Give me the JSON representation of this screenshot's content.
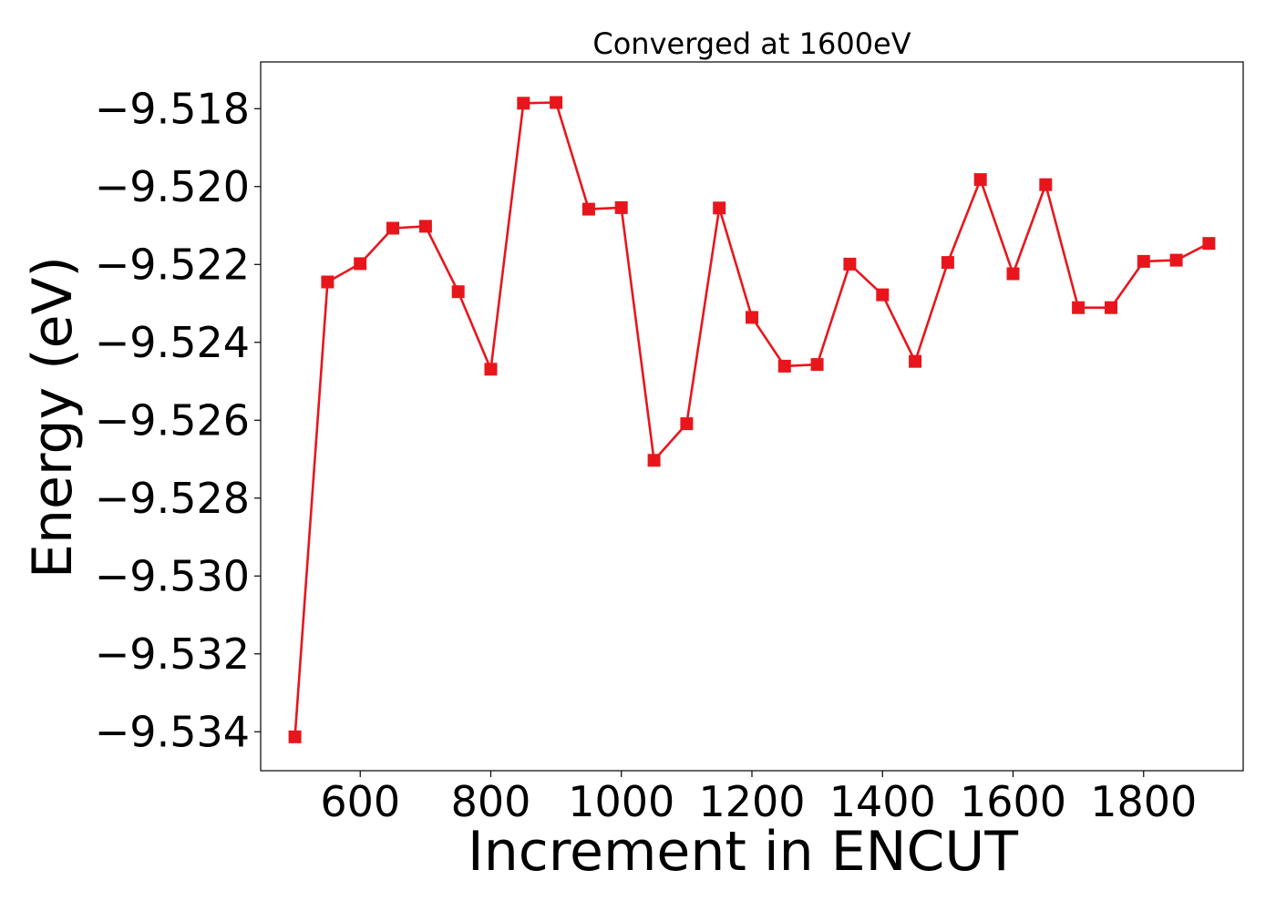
{
  "chart_data": {
    "type": "line",
    "title": "Converged at 1600eV",
    "xlabel": "Increment in ENCUT",
    "ylabel": "Energy (eV)",
    "xlim": [
      447.5,
      1952.5
    ],
    "ylim": [
      -9.535,
      -9.5168
    ],
    "xticks": [
      600,
      800,
      1000,
      1200,
      1400,
      1600,
      1800
    ],
    "xtick_labels": [
      "600",
      "800",
      "1000",
      "1200",
      "1400",
      "1600",
      "1800"
    ],
    "yticks": [
      -9.518,
      -9.52,
      -9.522,
      -9.524,
      -9.526,
      -9.528,
      -9.53,
      -9.532,
      -9.534
    ],
    "ytick_labels": [
      "−9.518",
      "−9.520",
      "−9.522",
      "−9.524",
      "−9.526",
      "−9.528",
      "−9.530",
      "−9.532",
      "−9.534"
    ],
    "grid": false,
    "marker": "square",
    "color": "#e8161c",
    "x": [
      500,
      550,
      600,
      650,
      700,
      750,
      800,
      850,
      900,
      950,
      1000,
      1050,
      1100,
      1150,
      1200,
      1250,
      1300,
      1350,
      1400,
      1450,
      1500,
      1550,
      1600,
      1650,
      1700,
      1750,
      1800,
      1850,
      1900
    ],
    "y": [
      -9.53413,
      -9.52245,
      -9.52198,
      -9.52107,
      -9.52102,
      -9.5227,
      -9.52469,
      -9.51786,
      -9.51784,
      -9.52058,
      -9.52054,
      -9.52703,
      -9.52609,
      -9.52055,
      -9.52336,
      -9.52461,
      -9.52457,
      -9.52199,
      -9.52278,
      -9.52449,
      -9.52195,
      -9.51982,
      -9.52224,
      -9.51995,
      -9.52311,
      -9.52311,
      -9.52192,
      -9.52189,
      -9.52146
    ]
  }
}
